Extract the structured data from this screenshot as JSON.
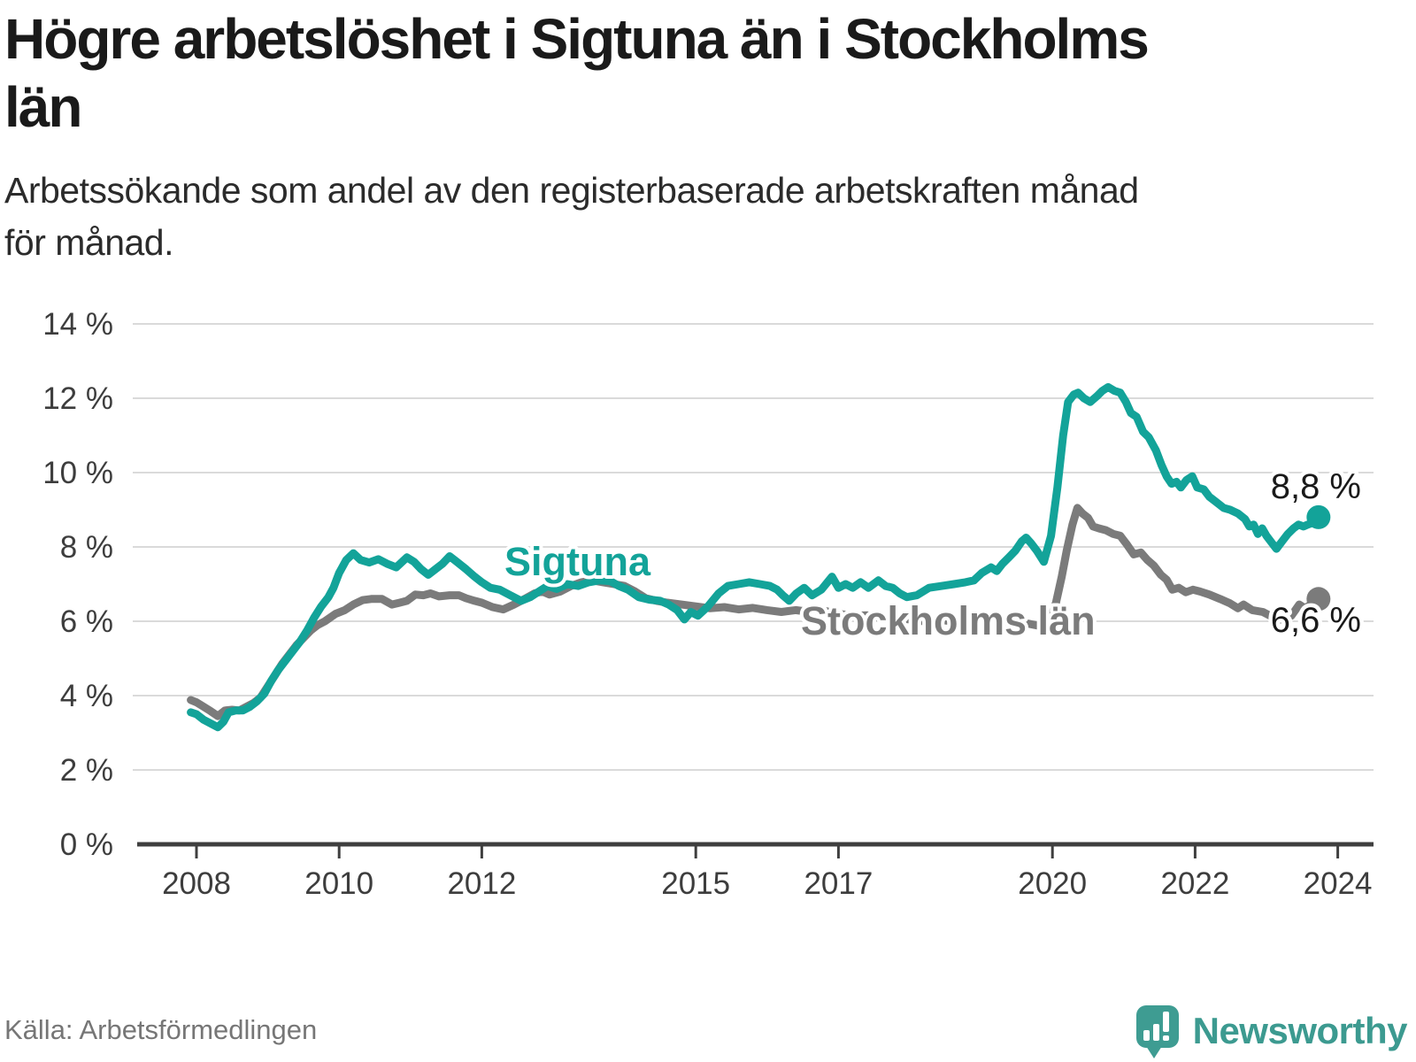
{
  "title": {
    "line1": "Högre arbetslöshet i Sigtuna än i Stockholms",
    "line2": "län"
  },
  "subtitle": {
    "line1": "Arbetssökande som andel av den registerbaserade arbetskraften månad",
    "line2": "för månad."
  },
  "source_note": "Källa: Arbetsförmedlingen",
  "branding": {
    "wordmark": "Newsworthy",
    "logo_icon": "newsworthy-speech-bubble-bar-chart-icon",
    "brand_color": "#3c9a90"
  },
  "colors": {
    "sigtuna_teal": "#13a399",
    "stockholm_gray": "#7b7b7b",
    "gridline": "#dadada",
    "axis": "#3f3f3f",
    "text_dark": "#1a1a1a",
    "tick_text": "#3d3d3d",
    "background": "#ffffff"
  },
  "chart_data": {
    "type": "line",
    "x_unit": "year (monthly data)",
    "y_unit": "percent of registered labour force",
    "grid": true,
    "x_range": [
      2007.9,
      2024.3
    ],
    "y_range": [
      0,
      14
    ],
    "x_ticks": [
      {
        "year": 2008,
        "label": "2008"
      },
      {
        "year": 2010,
        "label": "2010"
      },
      {
        "year": 2012,
        "label": "2012"
      },
      {
        "year": 2015,
        "label": "2015"
      },
      {
        "year": 2017,
        "label": "2017"
      },
      {
        "year": 2020,
        "label": "2020"
      },
      {
        "year": 2022,
        "label": "2022"
      },
      {
        "year": 2024,
        "label": "2024"
      }
    ],
    "y_ticks": [
      {
        "value": 0,
        "label": "0 %"
      },
      {
        "value": 2,
        "label": "2 %"
      },
      {
        "value": 4,
        "label": "4 %"
      },
      {
        "value": 6,
        "label": "6 %"
      },
      {
        "value": 8,
        "label": "8 %"
      },
      {
        "value": 10,
        "label": "10 %"
      },
      {
        "value": 12,
        "label": "12 %"
      },
      {
        "value": 14,
        "label": "14 %"
      }
    ],
    "series": [
      {
        "name": "Sigtuna",
        "label": "Sigtuna",
        "color": "#13a399",
        "end_label": "8,8 %",
        "end_value": 8.8,
        "points": [
          [
            2007.92,
            3.55
          ],
          [
            2008.0,
            3.5
          ],
          [
            2008.1,
            3.35
          ],
          [
            2008.2,
            3.25
          ],
          [
            2008.3,
            3.15
          ],
          [
            2008.38,
            3.3
          ],
          [
            2008.45,
            3.55
          ],
          [
            2008.55,
            3.6
          ],
          [
            2008.65,
            3.6
          ],
          [
            2008.75,
            3.7
          ],
          [
            2008.85,
            3.85
          ],
          [
            2008.95,
            4.05
          ],
          [
            2009.05,
            4.4
          ],
          [
            2009.15,
            4.7
          ],
          [
            2009.25,
            4.95
          ],
          [
            2009.35,
            5.2
          ],
          [
            2009.45,
            5.45
          ],
          [
            2009.55,
            5.75
          ],
          [
            2009.65,
            6.1
          ],
          [
            2009.75,
            6.4
          ],
          [
            2009.85,
            6.65
          ],
          [
            2009.92,
            6.9
          ],
          [
            2010.0,
            7.3
          ],
          [
            2010.1,
            7.65
          ],
          [
            2010.2,
            7.83
          ],
          [
            2010.3,
            7.65
          ],
          [
            2010.42,
            7.58
          ],
          [
            2010.55,
            7.67
          ],
          [
            2010.67,
            7.55
          ],
          [
            2010.8,
            7.45
          ],
          [
            2010.95,
            7.72
          ],
          [
            2011.05,
            7.6
          ],
          [
            2011.15,
            7.4
          ],
          [
            2011.25,
            7.25
          ],
          [
            2011.35,
            7.4
          ],
          [
            2011.45,
            7.55
          ],
          [
            2011.55,
            7.75
          ],
          [
            2011.65,
            7.6
          ],
          [
            2011.78,
            7.4
          ],
          [
            2011.9,
            7.2
          ],
          [
            2012.0,
            7.05
          ],
          [
            2012.12,
            6.9
          ],
          [
            2012.25,
            6.85
          ],
          [
            2012.4,
            6.7
          ],
          [
            2012.55,
            6.55
          ],
          [
            2012.68,
            6.65
          ],
          [
            2012.8,
            6.8
          ],
          [
            2012.92,
            6.95
          ],
          [
            2013.05,
            6.87
          ],
          [
            2013.2,
            7.0
          ],
          [
            2013.35,
            6.95
          ],
          [
            2013.5,
            7.05
          ],
          [
            2013.65,
            7.1
          ],
          [
            2013.8,
            7.08
          ],
          [
            2013.92,
            6.95
          ],
          [
            2014.05,
            6.85
          ],
          [
            2014.2,
            6.65
          ],
          [
            2014.35,
            6.58
          ],
          [
            2014.5,
            6.55
          ],
          [
            2014.62,
            6.45
          ],
          [
            2014.74,
            6.3
          ],
          [
            2014.84,
            6.05
          ],
          [
            2014.93,
            6.25
          ],
          [
            2015.03,
            6.15
          ],
          [
            2015.17,
            6.4
          ],
          [
            2015.32,
            6.75
          ],
          [
            2015.45,
            6.95
          ],
          [
            2015.6,
            7.0
          ],
          [
            2015.75,
            7.05
          ],
          [
            2015.9,
            7.0
          ],
          [
            2016.04,
            6.95
          ],
          [
            2016.14,
            6.85
          ],
          [
            2016.22,
            6.7
          ],
          [
            2016.31,
            6.55
          ],
          [
            2016.41,
            6.75
          ],
          [
            2016.52,
            6.9
          ],
          [
            2016.63,
            6.7
          ],
          [
            2016.76,
            6.85
          ],
          [
            2016.91,
            7.2
          ],
          [
            2017.0,
            6.9
          ],
          [
            2017.1,
            7.0
          ],
          [
            2017.2,
            6.9
          ],
          [
            2017.31,
            7.05
          ],
          [
            2017.42,
            6.9
          ],
          [
            2017.56,
            7.1
          ],
          [
            2017.66,
            6.95
          ],
          [
            2017.76,
            6.9
          ],
          [
            2017.86,
            6.75
          ],
          [
            2017.96,
            6.65
          ],
          [
            2018.1,
            6.7
          ],
          [
            2018.27,
            6.9
          ],
          [
            2018.45,
            6.95
          ],
          [
            2018.62,
            7.0
          ],
          [
            2018.78,
            7.05
          ],
          [
            2018.9,
            7.1
          ],
          [
            2019.01,
            7.3
          ],
          [
            2019.14,
            7.45
          ],
          [
            2019.22,
            7.35
          ],
          [
            2019.3,
            7.55
          ],
          [
            2019.38,
            7.7
          ],
          [
            2019.48,
            7.9
          ],
          [
            2019.57,
            8.15
          ],
          [
            2019.63,
            8.25
          ],
          [
            2019.7,
            8.1
          ],
          [
            2019.78,
            7.9
          ],
          [
            2019.88,
            7.6
          ],
          [
            2019.98,
            8.3
          ],
          [
            2020.07,
            9.6
          ],
          [
            2020.15,
            11.0
          ],
          [
            2020.22,
            11.9
          ],
          [
            2020.3,
            12.1
          ],
          [
            2020.36,
            12.15
          ],
          [
            2020.44,
            12.0
          ],
          [
            2020.53,
            11.9
          ],
          [
            2020.62,
            12.05
          ],
          [
            2020.7,
            12.2
          ],
          [
            2020.78,
            12.3
          ],
          [
            2020.87,
            12.2
          ],
          [
            2020.95,
            12.15
          ],
          [
            2021.03,
            11.9
          ],
          [
            2021.1,
            11.6
          ],
          [
            2021.18,
            11.5
          ],
          [
            2021.27,
            11.1
          ],
          [
            2021.35,
            10.95
          ],
          [
            2021.45,
            10.6
          ],
          [
            2021.53,
            10.2
          ],
          [
            2021.6,
            9.9
          ],
          [
            2021.67,
            9.7
          ],
          [
            2021.74,
            9.75
          ],
          [
            2021.8,
            9.6
          ],
          [
            2021.88,
            9.8
          ],
          [
            2021.96,
            9.9
          ],
          [
            2022.03,
            9.6
          ],
          [
            2022.12,
            9.55
          ],
          [
            2022.2,
            9.35
          ],
          [
            2022.3,
            9.2
          ],
          [
            2022.4,
            9.05
          ],
          [
            2022.49,
            9.0
          ],
          [
            2022.6,
            8.9
          ],
          [
            2022.7,
            8.75
          ],
          [
            2022.76,
            8.55
          ],
          [
            2022.82,
            8.6
          ],
          [
            2022.88,
            8.35
          ],
          [
            2022.94,
            8.5
          ],
          [
            2023.0,
            8.3
          ],
          [
            2023.08,
            8.1
          ],
          [
            2023.14,
            7.95
          ],
          [
            2023.22,
            8.15
          ],
          [
            2023.3,
            8.35
          ],
          [
            2023.38,
            8.5
          ],
          [
            2023.45,
            8.6
          ],
          [
            2023.52,
            8.55
          ],
          [
            2023.58,
            8.6
          ],
          [
            2023.65,
            8.65
          ],
          [
            2023.73,
            8.8
          ]
        ]
      },
      {
        "name": "Stockholms län",
        "label": "Stockholms län",
        "color": "#7b7b7b",
        "end_label": "6,6 %",
        "end_value": 6.6,
        "points": [
          [
            2007.92,
            3.88
          ],
          [
            2008.0,
            3.82
          ],
          [
            2008.1,
            3.7
          ],
          [
            2008.2,
            3.58
          ],
          [
            2008.3,
            3.45
          ],
          [
            2008.4,
            3.6
          ],
          [
            2008.5,
            3.62
          ],
          [
            2008.6,
            3.6
          ],
          [
            2008.7,
            3.7
          ],
          [
            2008.8,
            3.8
          ],
          [
            2008.9,
            3.95
          ],
          [
            2009.0,
            4.25
          ],
          [
            2009.1,
            4.55
          ],
          [
            2009.2,
            4.85
          ],
          [
            2009.3,
            5.1
          ],
          [
            2009.4,
            5.35
          ],
          [
            2009.5,
            5.55
          ],
          [
            2009.6,
            5.75
          ],
          [
            2009.7,
            5.9
          ],
          [
            2009.8,
            6.0
          ],
          [
            2009.95,
            6.2
          ],
          [
            2010.08,
            6.3
          ],
          [
            2010.2,
            6.45
          ],
          [
            2010.33,
            6.57
          ],
          [
            2010.45,
            6.6
          ],
          [
            2010.6,
            6.6
          ],
          [
            2010.74,
            6.45
          ],
          [
            2010.85,
            6.5
          ],
          [
            2010.95,
            6.55
          ],
          [
            2011.07,
            6.72
          ],
          [
            2011.18,
            6.7
          ],
          [
            2011.28,
            6.75
          ],
          [
            2011.4,
            6.67
          ],
          [
            2011.55,
            6.7
          ],
          [
            2011.68,
            6.7
          ],
          [
            2011.78,
            6.62
          ],
          [
            2011.9,
            6.55
          ],
          [
            2012.0,
            6.5
          ],
          [
            2012.15,
            6.38
          ],
          [
            2012.3,
            6.32
          ],
          [
            2012.45,
            6.45
          ],
          [
            2012.6,
            6.6
          ],
          [
            2012.74,
            6.75
          ],
          [
            2012.85,
            6.8
          ],
          [
            2012.95,
            6.72
          ],
          [
            2013.1,
            6.8
          ],
          [
            2013.25,
            6.95
          ],
          [
            2013.4,
            7.05
          ],
          [
            2013.55,
            7.1
          ],
          [
            2013.7,
            7.05
          ],
          [
            2013.85,
            7.0
          ],
          [
            2014.0,
            6.95
          ],
          [
            2014.15,
            6.8
          ],
          [
            2014.3,
            6.62
          ],
          [
            2014.45,
            6.55
          ],
          [
            2014.6,
            6.5
          ],
          [
            2014.8,
            6.45
          ],
          [
            2015.0,
            6.4
          ],
          [
            2015.2,
            6.35
          ],
          [
            2015.4,
            6.38
          ],
          [
            2015.6,
            6.32
          ],
          [
            2015.8,
            6.36
          ],
          [
            2016.0,
            6.3
          ],
          [
            2016.2,
            6.25
          ],
          [
            2016.4,
            6.3
          ],
          [
            2016.6,
            6.25
          ],
          [
            2016.8,
            6.28
          ],
          [
            2017.0,
            6.2
          ],
          [
            2017.2,
            6.15
          ],
          [
            2017.4,
            6.16
          ],
          [
            2017.6,
            6.1
          ],
          [
            2017.8,
            6.08
          ],
          [
            2018.0,
            6.05
          ],
          [
            2018.2,
            6.0
          ],
          [
            2018.4,
            6.04
          ],
          [
            2018.6,
            6.0
          ],
          [
            2018.8,
            5.98
          ],
          [
            2019.0,
            6.0
          ],
          [
            2019.2,
            5.95
          ],
          [
            2019.4,
            5.9
          ],
          [
            2019.6,
            5.96
          ],
          [
            2019.8,
            5.88
          ],
          [
            2019.95,
            5.95
          ],
          [
            2020.05,
            6.5
          ],
          [
            2020.13,
            7.2
          ],
          [
            2020.2,
            7.9
          ],
          [
            2020.28,
            8.6
          ],
          [
            2020.35,
            9.05
          ],
          [
            2020.42,
            8.9
          ],
          [
            2020.5,
            8.78
          ],
          [
            2020.57,
            8.55
          ],
          [
            2020.65,
            8.5
          ],
          [
            2020.75,
            8.45
          ],
          [
            2020.85,
            8.35
          ],
          [
            2020.95,
            8.3
          ],
          [
            2021.05,
            8.05
          ],
          [
            2021.14,
            7.8
          ],
          [
            2021.24,
            7.85
          ],
          [
            2021.33,
            7.65
          ],
          [
            2021.42,
            7.5
          ],
          [
            2021.52,
            7.25
          ],
          [
            2021.6,
            7.12
          ],
          [
            2021.68,
            6.85
          ],
          [
            2021.77,
            6.9
          ],
          [
            2021.87,
            6.78
          ],
          [
            2021.97,
            6.85
          ],
          [
            2022.07,
            6.8
          ],
          [
            2022.2,
            6.72
          ],
          [
            2022.35,
            6.6
          ],
          [
            2022.49,
            6.48
          ],
          [
            2022.6,
            6.35
          ],
          [
            2022.68,
            6.45
          ],
          [
            2022.8,
            6.3
          ],
          [
            2022.95,
            6.25
          ],
          [
            2023.05,
            6.15
          ],
          [
            2023.14,
            6.05
          ],
          [
            2023.25,
            6.05
          ],
          [
            2023.35,
            6.15
          ],
          [
            2023.46,
            6.45
          ],
          [
            2023.54,
            6.35
          ],
          [
            2023.62,
            6.45
          ],
          [
            2023.73,
            6.6
          ]
        ]
      }
    ]
  }
}
